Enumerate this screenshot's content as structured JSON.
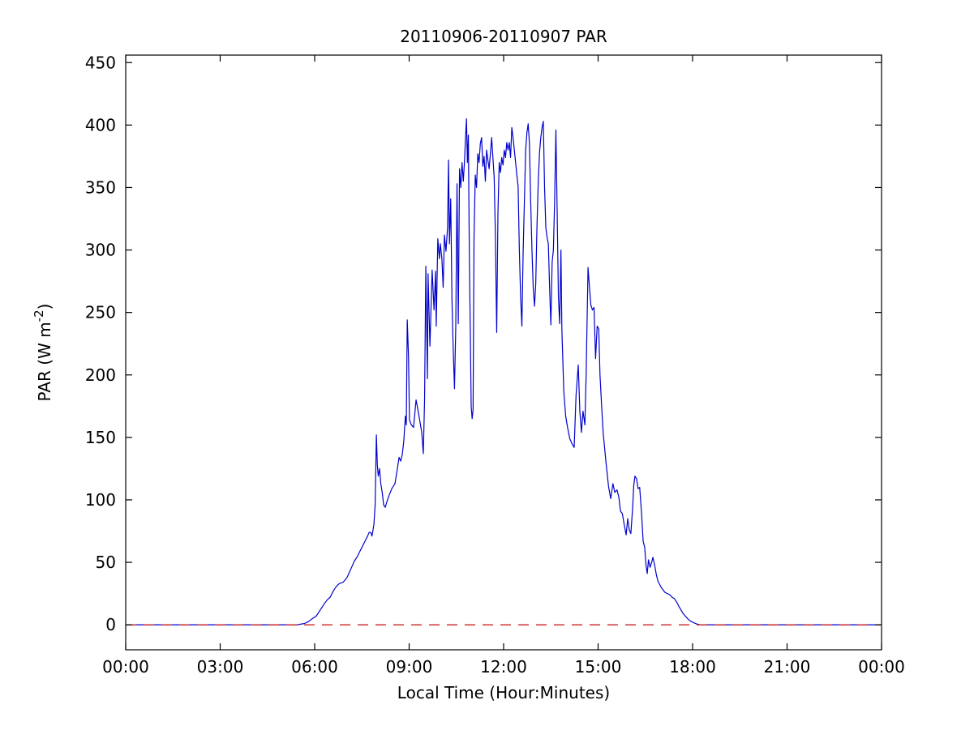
{
  "figure": {
    "background_color": "#ffffff",
    "title": "20110906-20110907 PAR"
  },
  "chart_data": {
    "type": "line",
    "title": "20110906-20110907 PAR",
    "xlabel": "Local Time (Hour:Minutes)",
    "ylabel": "PAR (W m-2)",
    "ylabel_parts": {
      "base": "PAR (W m",
      "superscript": "-2",
      "close": ")"
    },
    "grid": "off",
    "legend": "none",
    "xlim_hours": [
      0,
      24
    ],
    "ylim": [
      -20,
      456
    ],
    "x_tick_hours": [
      0,
      3,
      6,
      9,
      12,
      15,
      18,
      21,
      24
    ],
    "x_tick_labels": [
      "00:00",
      "03:00",
      "06:00",
      "09:00",
      "12:00",
      "15:00",
      "18:00",
      "21:00",
      "00:00"
    ],
    "y_tick_values": [
      0,
      50,
      100,
      150,
      200,
      250,
      300,
      350,
      400,
      450
    ],
    "y_tick_labels": [
      "0",
      "50",
      "100",
      "150",
      "200",
      "250",
      "300",
      "350",
      "400",
      "450"
    ],
    "series": [
      {
        "name": "PAR",
        "color": "#0000cc",
        "style": "solid",
        "points": [
          [
            0,
            0
          ],
          [
            0.5,
            0
          ],
          [
            1,
            0
          ],
          [
            1.5,
            0
          ],
          [
            2,
            0
          ],
          [
            2.5,
            0
          ],
          [
            3,
            0
          ],
          [
            3.5,
            0
          ],
          [
            4,
            0
          ],
          [
            4.5,
            0
          ],
          [
            5,
            0
          ],
          [
            5.3,
            0
          ],
          [
            5.45,
            0
          ],
          [
            5.55,
            0.5
          ],
          [
            5.67,
            1
          ],
          [
            5.8,
            2.5
          ],
          [
            5.93,
            5
          ],
          [
            6.05,
            7
          ],
          [
            6.18,
            12
          ],
          [
            6.31,
            17
          ],
          [
            6.4,
            20
          ],
          [
            6.49,
            22
          ],
          [
            6.57,
            26
          ],
          [
            6.64,
            29
          ],
          [
            6.7,
            31
          ],
          [
            6.78,
            33
          ],
          [
            6.9,
            34
          ],
          [
            6.97,
            36
          ],
          [
            7.03,
            38
          ],
          [
            7.12,
            43
          ],
          [
            7.19,
            47
          ],
          [
            7.26,
            51
          ],
          [
            7.34,
            54
          ],
          [
            7.42,
            58
          ],
          [
            7.5,
            62
          ],
          [
            7.6,
            67
          ],
          [
            7.68,
            71
          ],
          [
            7.73,
            74
          ],
          [
            7.78,
            74
          ],
          [
            7.82,
            71
          ],
          [
            7.88,
            80
          ],
          [
            7.92,
            96
          ],
          [
            7.96,
            152
          ],
          [
            7.99,
            128
          ],
          [
            8.02,
            119
          ],
          [
            8.06,
            125
          ],
          [
            8.1,
            113
          ],
          [
            8.15,
            105
          ],
          [
            8.19,
            96
          ],
          [
            8.24,
            94
          ],
          [
            8.3,
            99
          ],
          [
            8.37,
            104
          ],
          [
            8.45,
            109
          ],
          [
            8.55,
            113
          ],
          [
            8.62,
            124
          ],
          [
            8.68,
            134
          ],
          [
            8.73,
            131
          ],
          [
            8.78,
            136
          ],
          [
            8.83,
            147
          ],
          [
            8.88,
            167
          ],
          [
            8.91,
            160
          ],
          [
            8.94,
            244
          ],
          [
            8.98,
            215
          ],
          [
            9.01,
            164
          ],
          [
            9.07,
            160
          ],
          [
            9.14,
            158
          ],
          [
            9.22,
            180
          ],
          [
            9.28,
            172
          ],
          [
            9.34,
            163
          ],
          [
            9.4,
            154
          ],
          [
            9.45,
            137
          ],
          [
            9.49,
            180
          ],
          [
            9.53,
            287
          ],
          [
            9.58,
            197
          ],
          [
            9.6,
            281
          ],
          [
            9.66,
            223
          ],
          [
            9.73,
            284
          ],
          [
            9.79,
            252
          ],
          [
            9.84,
            283
          ],
          [
            9.86,
            239
          ],
          [
            9.91,
            309
          ],
          [
            9.96,
            293
          ],
          [
            9.99,
            305
          ],
          [
            10.04,
            293
          ],
          [
            10.08,
            270
          ],
          [
            10.12,
            312
          ],
          [
            10.17,
            299
          ],
          [
            10.22,
            318
          ],
          [
            10.25,
            372
          ],
          [
            10.28,
            305
          ],
          [
            10.32,
            341
          ],
          [
            10.36,
            260
          ],
          [
            10.4,
            220
          ],
          [
            10.44,
            189
          ],
          [
            10.48,
            238
          ],
          [
            10.52,
            353
          ],
          [
            10.56,
            241
          ],
          [
            10.6,
            365
          ],
          [
            10.64,
            350
          ],
          [
            10.68,
            370
          ],
          [
            10.72,
            355
          ],
          [
            10.76,
            372
          ],
          [
            10.79,
            390
          ],
          [
            10.82,
            405
          ],
          [
            10.85,
            370
          ],
          [
            10.88,
            392
          ],
          [
            10.91,
            300
          ],
          [
            10.94,
            238
          ],
          [
            10.97,
            175
          ],
          [
            11,
            165
          ],
          [
            11.03,
            172
          ],
          [
            11.06,
            310
          ],
          [
            11.1,
            360
          ],
          [
            11.14,
            350
          ],
          [
            11.18,
            377
          ],
          [
            11.22,
            370
          ],
          [
            11.26,
            385
          ],
          [
            11.3,
            390
          ],
          [
            11.34,
            367
          ],
          [
            11.38,
            375
          ],
          [
            11.42,
            355
          ],
          [
            11.46,
            380
          ],
          [
            11.5,
            372
          ],
          [
            11.54,
            365
          ],
          [
            11.58,
            377
          ],
          [
            11.62,
            390
          ],
          [
            11.66,
            374
          ],
          [
            11.7,
            358
          ],
          [
            11.74,
            310
          ],
          [
            11.78,
            234
          ],
          [
            11.82,
            330
          ],
          [
            11.86,
            370
          ],
          [
            11.9,
            362
          ],
          [
            11.94,
            374
          ],
          [
            11.98,
            368
          ],
          [
            12.02,
            380
          ],
          [
            12.06,
            374
          ],
          [
            12.1,
            386
          ],
          [
            12.14,
            380
          ],
          [
            12.18,
            386
          ],
          [
            12.22,
            374
          ],
          [
            12.26,
            398
          ],
          [
            12.3,
            390
          ],
          [
            12.34,
            380
          ],
          [
            12.38,
            370
          ],
          [
            12.42,
            360
          ],
          [
            12.46,
            351
          ],
          [
            12.5,
            299
          ],
          [
            12.54,
            262
          ],
          [
            12.58,
            239
          ],
          [
            12.62,
            299
          ],
          [
            12.66,
            340
          ],
          [
            12.7,
            380
          ],
          [
            12.74,
            394
          ],
          [
            12.78,
            401
          ],
          [
            12.82,
            385
          ],
          [
            12.86,
            338
          ],
          [
            12.9,
            300
          ],
          [
            12.94,
            270
          ],
          [
            12.98,
            255
          ],
          [
            13.02,
            273
          ],
          [
            13.06,
            320
          ],
          [
            13.1,
            355
          ],
          [
            13.14,
            378
          ],
          [
            13.18,
            390
          ],
          [
            13.22,
            398
          ],
          [
            13.26,
            403
          ],
          [
            13.3,
            350
          ],
          [
            13.34,
            318
          ],
          [
            13.38,
            310
          ],
          [
            13.42,
            305
          ],
          [
            13.46,
            270
          ],
          [
            13.5,
            240
          ],
          [
            13.54,
            290
          ],
          [
            13.58,
            300
          ],
          [
            13.62,
            340
          ],
          [
            13.66,
            396
          ],
          [
            13.7,
            330
          ],
          [
            13.74,
            262
          ],
          [
            13.78,
            241
          ],
          [
            13.82,
            300
          ],
          [
            13.85,
            236
          ],
          [
            13.91,
            187
          ],
          [
            13.97,
            167
          ],
          [
            14.03,
            158
          ],
          [
            14.1,
            149
          ],
          [
            14.17,
            145
          ],
          [
            14.24,
            142
          ],
          [
            14.3,
            184
          ],
          [
            14.37,
            208
          ],
          [
            14.42,
            171
          ],
          [
            14.47,
            154
          ],
          [
            14.52,
            171
          ],
          [
            14.58,
            160
          ],
          [
            14.62,
            200
          ],
          [
            14.68,
            286
          ],
          [
            14.72,
            272
          ],
          [
            14.77,
            256
          ],
          [
            14.82,
            252
          ],
          [
            14.87,
            254
          ],
          [
            14.92,
            213
          ],
          [
            14.97,
            239
          ],
          [
            15.02,
            237
          ],
          [
            15.06,
            200
          ],
          [
            15.11,
            176
          ],
          [
            15.16,
            154
          ],
          [
            15.25,
            130
          ],
          [
            15.33,
            111
          ],
          [
            15.4,
            101
          ],
          [
            15.47,
            113
          ],
          [
            15.53,
            106
          ],
          [
            15.6,
            108
          ],
          [
            15.66,
            102
          ],
          [
            15.71,
            91
          ],
          [
            15.77,
            89
          ],
          [
            15.83,
            80
          ],
          [
            15.89,
            72
          ],
          [
            15.94,
            85
          ],
          [
            15.99,
            76
          ],
          [
            16.04,
            73
          ],
          [
            16.1,
            95
          ],
          [
            16.13,
            111
          ],
          [
            16.17,
            119
          ],
          [
            16.22,
            117
          ],
          [
            16.27,
            109
          ],
          [
            16.32,
            110
          ],
          [
            16.38,
            89
          ],
          [
            16.43,
            67
          ],
          [
            16.48,
            62
          ],
          [
            16.52,
            48
          ],
          [
            16.56,
            41
          ],
          [
            16.6,
            52
          ],
          [
            16.65,
            46
          ],
          [
            16.7,
            50
          ],
          [
            16.74,
            54
          ],
          [
            16.8,
            47
          ],
          [
            16.85,
            40
          ],
          [
            16.9,
            35
          ],
          [
            16.94,
            33
          ],
          [
            17,
            30
          ],
          [
            17.06,
            28
          ],
          [
            17.12,
            26
          ],
          [
            17.2,
            25
          ],
          [
            17.28,
            24
          ],
          [
            17.35,
            22
          ],
          [
            17.42,
            21
          ],
          [
            17.5,
            18
          ],
          [
            17.56,
            15
          ],
          [
            17.63,
            12
          ],
          [
            17.7,
            9
          ],
          [
            17.77,
            7
          ],
          [
            17.84,
            5
          ],
          [
            17.9,
            3.5
          ],
          [
            17.97,
            2.5
          ],
          [
            18.05,
            1.5
          ],
          [
            18.15,
            0.5
          ],
          [
            18.25,
            0
          ],
          [
            18.5,
            0
          ],
          [
            19,
            0
          ],
          [
            19.5,
            0
          ],
          [
            20,
            0
          ],
          [
            20.5,
            0
          ],
          [
            21,
            0
          ],
          [
            21.5,
            0
          ],
          [
            22,
            0
          ],
          [
            22.5,
            0
          ],
          [
            23,
            0
          ],
          [
            23.5,
            0
          ],
          [
            24,
            0
          ]
        ]
      },
      {
        "name": "zero-reference-line",
        "color": "#cc2020",
        "style": "dashed",
        "y_value": 0
      }
    ]
  }
}
